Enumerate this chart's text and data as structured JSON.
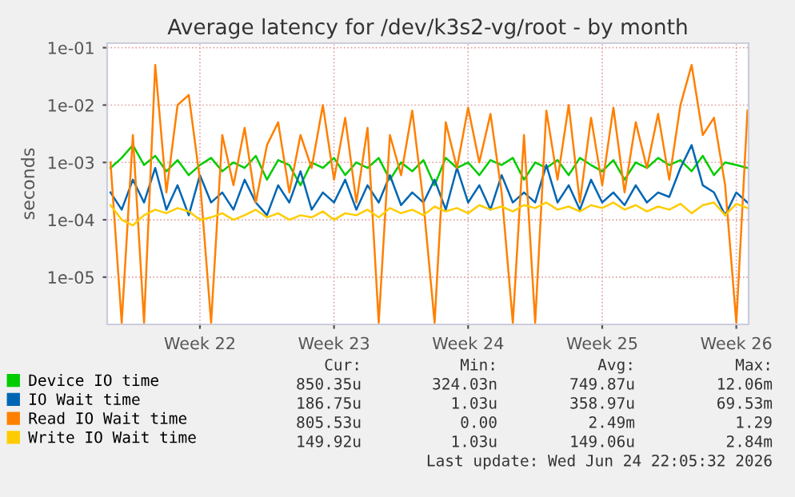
{
  "chart_data": {
    "type": "line",
    "title": "Average latency for /dev/k3s2-vg/root - by month",
    "ylabel": "seconds",
    "categories": [
      null,
      null,
      null,
      null,
      null,
      null,
      null,
      null,
      "Week 22",
      null,
      null,
      null,
      null,
      null,
      null,
      null,
      null,
      null,
      null,
      null,
      "Week 23",
      null,
      null,
      null,
      null,
      null,
      null,
      null,
      null,
      null,
      null,
      null,
      "Week 24",
      null,
      null,
      null,
      null,
      null,
      null,
      null,
      null,
      null,
      null,
      null,
      "Week 25",
      null,
      null,
      null,
      null,
      null,
      null,
      null,
      null,
      null,
      null,
      null,
      "Week 26",
      null
    ],
    "series": [
      {
        "name": "Device IO time",
        "color": "#00cc00",
        "values": [
          0.0008,
          0.0012,
          0.002,
          0.0009,
          0.0013,
          0.0007,
          0.0011,
          0.0006,
          0.0009,
          0.0012,
          0.0007,
          0.001,
          0.0008,
          0.0013,
          0.0005,
          0.0011,
          0.0009,
          0.0004,
          0.001,
          0.0008,
          0.0012,
          0.0006,
          0.001,
          0.0008,
          0.0012,
          0.0005,
          0.001,
          0.0007,
          0.0011,
          0.0004,
          0.0012,
          0.0008,
          0.001,
          0.0006,
          0.0011,
          0.0009,
          0.0012,
          0.0005,
          0.001,
          0.0008,
          0.0011,
          0.0006,
          0.0012,
          0.0009,
          0.0007,
          0.0011,
          0.0005,
          0.001,
          0.0008,
          0.0012,
          0.0009,
          0.0011,
          0.0007,
          0.0013,
          0.0006,
          0.001,
          0.0009,
          0.0008
        ]
      },
      {
        "name": "IO Wait time",
        "color": "#0066b3",
        "values": [
          0.0003,
          0.00015,
          0.0005,
          0.0002,
          0.0008,
          0.00015,
          0.0004,
          0.00012,
          0.0006,
          0.0002,
          0.0003,
          0.00015,
          0.0005,
          0.0002,
          0.00012,
          0.0004,
          0.0002,
          0.0007,
          0.00015,
          0.0003,
          0.0002,
          0.0005,
          0.00015,
          0.0004,
          0.0002,
          0.0006,
          0.00018,
          0.0003,
          0.0002,
          0.0005,
          0.00015,
          0.0008,
          0.0002,
          0.0004,
          0.00015,
          0.0006,
          0.0002,
          0.0003,
          0.0002,
          0.0009,
          0.0002,
          0.0004,
          0.00015,
          0.0005,
          0.0002,
          0.0003,
          0.00018,
          0.0004,
          0.0002,
          0.0003,
          0.00025,
          0.0008,
          0.002,
          0.0004,
          0.0003,
          0.00012,
          0.0003,
          0.0002
        ]
      },
      {
        "name": "Read IO Wait time",
        "color": "#ff8000",
        "values": [
          0.001,
          1.6e-06,
          0.003,
          1.6e-06,
          0.05,
          0.0003,
          0.01,
          0.015,
          0.0005,
          1.6e-06,
          0.003,
          0.0004,
          0.004,
          0.0002,
          0.002,
          0.005,
          0.0003,
          0.003,
          0.0008,
          0.01,
          0.0005,
          0.006,
          0.0002,
          0.004,
          1.6e-06,
          0.003,
          0.0006,
          0.008,
          0.0002,
          1.6e-06,
          0.005,
          0.0008,
          0.009,
          0.001,
          0.007,
          0.0003,
          1.6e-06,
          0.003,
          1.6e-06,
          0.008,
          0.0005,
          0.01,
          0.0002,
          0.006,
          0.0004,
          0.009,
          0.0003,
          0.005,
          0.0008,
          0.007,
          0.0005,
          0.01,
          0.05,
          0.003,
          0.006,
          0.0004,
          1.6e-06,
          0.008
        ]
      },
      {
        "name": "Write IO Wait time",
        "color": "#ffcc00",
        "values": [
          0.00018,
          0.0001,
          8e-05,
          0.00012,
          0.00015,
          0.00013,
          0.00016,
          0.00014,
          0.0001,
          0.00011,
          0.00013,
          0.0001,
          0.00012,
          0.00015,
          0.00011,
          0.00013,
          0.0001,
          0.00012,
          0.00011,
          0.00014,
          0.0001,
          0.00013,
          0.00012,
          0.00015,
          0.00011,
          0.00016,
          0.00013,
          0.00015,
          0.00012,
          0.00017,
          0.00014,
          0.00016,
          0.00013,
          0.00018,
          0.00015,
          0.00017,
          0.00014,
          0.00018,
          0.00016,
          0.0002,
          0.00015,
          0.00017,
          0.00014,
          0.00018,
          0.00016,
          0.0002,
          0.00015,
          0.00018,
          0.00014,
          0.00017,
          0.00015,
          0.00019,
          0.00013,
          0.00018,
          0.0002,
          0.00012,
          0.00019,
          0.00016
        ]
      }
    ],
    "log": true,
    "ylim": [
      1.5e-06,
      0.12
    ],
    "yticks": [
      {
        "value": 1e-05,
        "label": "1e-05"
      },
      {
        "value": 0.0001,
        "label": "1e-04"
      },
      {
        "value": 0.001,
        "label": "1e-03"
      },
      {
        "value": 0.01,
        "label": "1e-02"
      },
      {
        "value": 0.1,
        "label": "1e-01"
      }
    ],
    "grid": true,
    "legend": "bottom",
    "line_style": "solid",
    "marker": "none",
    "annotations": [
      "Cur:",
      "Min:",
      "Avg:",
      "Max:",
      "850.35u",
      "324.03n",
      "749.87u",
      "12.06m",
      "186.75u",
      "1.03u",
      "358.97u",
      "69.53m",
      "805.53u",
      "0.00",
      "2.49m",
      "1.29",
      "149.92u",
      "1.03u",
      "149.06u",
      "2.84m",
      "Last update: Wed Jun 24 22:05:32 2026"
    ]
  }
}
